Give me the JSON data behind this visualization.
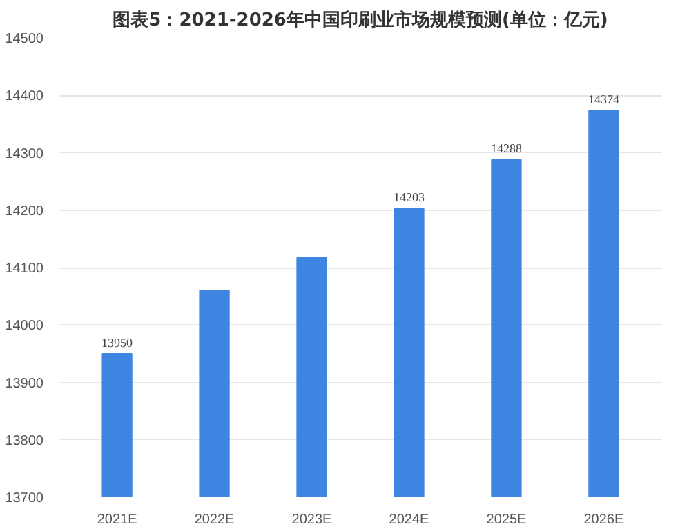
{
  "chart_data": {
    "type": "bar",
    "title": "图表5：2021-2026年中国印刷业市场规模预测(单位：亿元)",
    "categories": [
      "2021E",
      "2022E",
      "2023E",
      "2024E",
      "2025E",
      "2026E"
    ],
    "values": [
      13950,
      14060,
      14117,
      14203,
      14288,
      14374
    ],
    "value_labels": [
      "13950",
      null,
      null,
      "14203",
      "14288",
      "14374"
    ],
    "color": "#3d85e0",
    "ylim": [
      13700,
      14500
    ],
    "yticks": [
      13700,
      13800,
      13900,
      14000,
      14100,
      14200,
      14300,
      14400,
      14500
    ],
    "grid": "y"
  }
}
